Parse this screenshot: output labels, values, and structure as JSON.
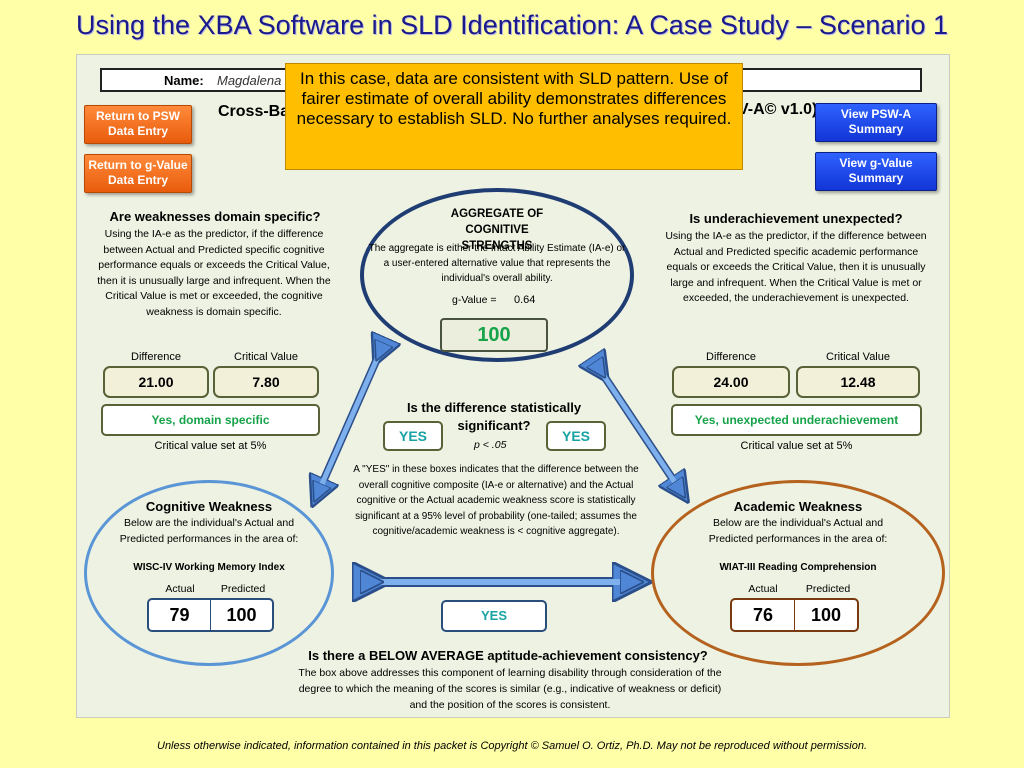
{
  "slide": {
    "title": "Using the XBA Software in SLD Identification: A Case Study – Scenario 1",
    "footer": "Unless otherwise indicated, information contained in this packet is Copyright © Samuel O. Ortiz, Ph.D.  May not be reproduced without permission."
  },
  "app": {
    "name_label": "Name:",
    "name_value": "Magdalena",
    "title_start": "Cross-Ba",
    "title_end": "V-A© v1.0)"
  },
  "buttons": {
    "return_psw": "Return to PSW Data Entry",
    "return_gvalue": "Return to g-Value Data Entry",
    "view_psw_a": "View PSW-A Summary",
    "view_gvalue": "View g-Value Summary"
  },
  "callout": "In this case, data are consistent with SLD pattern. Use of fairer estimate of overall ability demonstrates differences necessary to establish SLD. No further analyses required.",
  "left_section": {
    "title": "Are weaknesses domain specific?",
    "text": "Using the IA-e as the predictor, if the difference between Actual and Predicted specific cognitive performance equals or exceeds the Critical Value, then it is unusually large and infrequent. When the Critical Value is met or exceeded, the cognitive weakness is domain specific.",
    "diff_label": "Difference",
    "crit_label": "Critical Value",
    "diff_value": "21.00",
    "crit_value": "7.80",
    "result": "Yes, domain specific",
    "note": "Critical value set at 5%"
  },
  "right_section": {
    "title": "Is underachievement unexpected?",
    "text": "Using the IA-e as the predictor, if the difference between Actual and Predicted specific academic performance equals or exceeds the Critical Value, then it is unusually large and infrequent. When the Critical Value is met or exceeded, the underachievement is unexpected.",
    "diff_label": "Difference",
    "crit_label": "Critical Value",
    "diff_value": "24.00",
    "crit_value": "12.48",
    "result": "Yes, unexpected underachievement",
    "note": "Critical value set at 5%"
  },
  "aggregate": {
    "title": "AGGREGATE OF COGNITIVE STRENGTHS",
    "text": "The aggregate is either the Intact Ability Estimate (IA-e) or a user-entered alternative value that represents the individual's overall ability.",
    "gvalue_label": "g-Value  =",
    "gvalue": "0.64",
    "score": "100"
  },
  "significance": {
    "title": "Is the difference statistically significant?",
    "p": "p < .05",
    "yes_left": "YES",
    "yes_right": "YES",
    "text": "A \"YES\" in these boxes indicates that the difference between the overall cognitive composite (IA-e or alternative) and the Actual cognitive or the Actual academic weakness score is statistically significant at a 95% level of probability (one-tailed; assumes the cognitive/academic weakness is < cognitive aggregate)."
  },
  "cognitive": {
    "title": "Cognitive Weakness",
    "text": "Below are the individual's Actual and Predicted performances in the area of:",
    "area": "WISC-IV Working Memory Index",
    "actual_label": "Actual",
    "predicted_label": "Predicted",
    "actual": "79",
    "predicted": "100"
  },
  "academic": {
    "title": "Academic Weakness",
    "text": "Below are the individual's Actual and Predicted performances in the area of:",
    "area": "WIAT-III Reading Comprehension",
    "actual_label": "Actual",
    "predicted_label": "Predicted",
    "actual": "76",
    "predicted": "100"
  },
  "consistency": {
    "yes": "YES",
    "title": "Is there a BELOW AVERAGE aptitude-achievement consistency?",
    "text": "The box above addresses this component of learning disability through consideration of the degree to which the meaning of the scores is similar (e.g., indicative of weakness or deficit) and the position of the scores is consistent."
  },
  "colors": {
    "background": "#ffffa8",
    "callout": "#ffbf00",
    "accent_green": "#17a34a",
    "orange_button": "#ff8a3a",
    "blue_button": "#1235d6",
    "arrow_blue": "#4f87d6"
  }
}
